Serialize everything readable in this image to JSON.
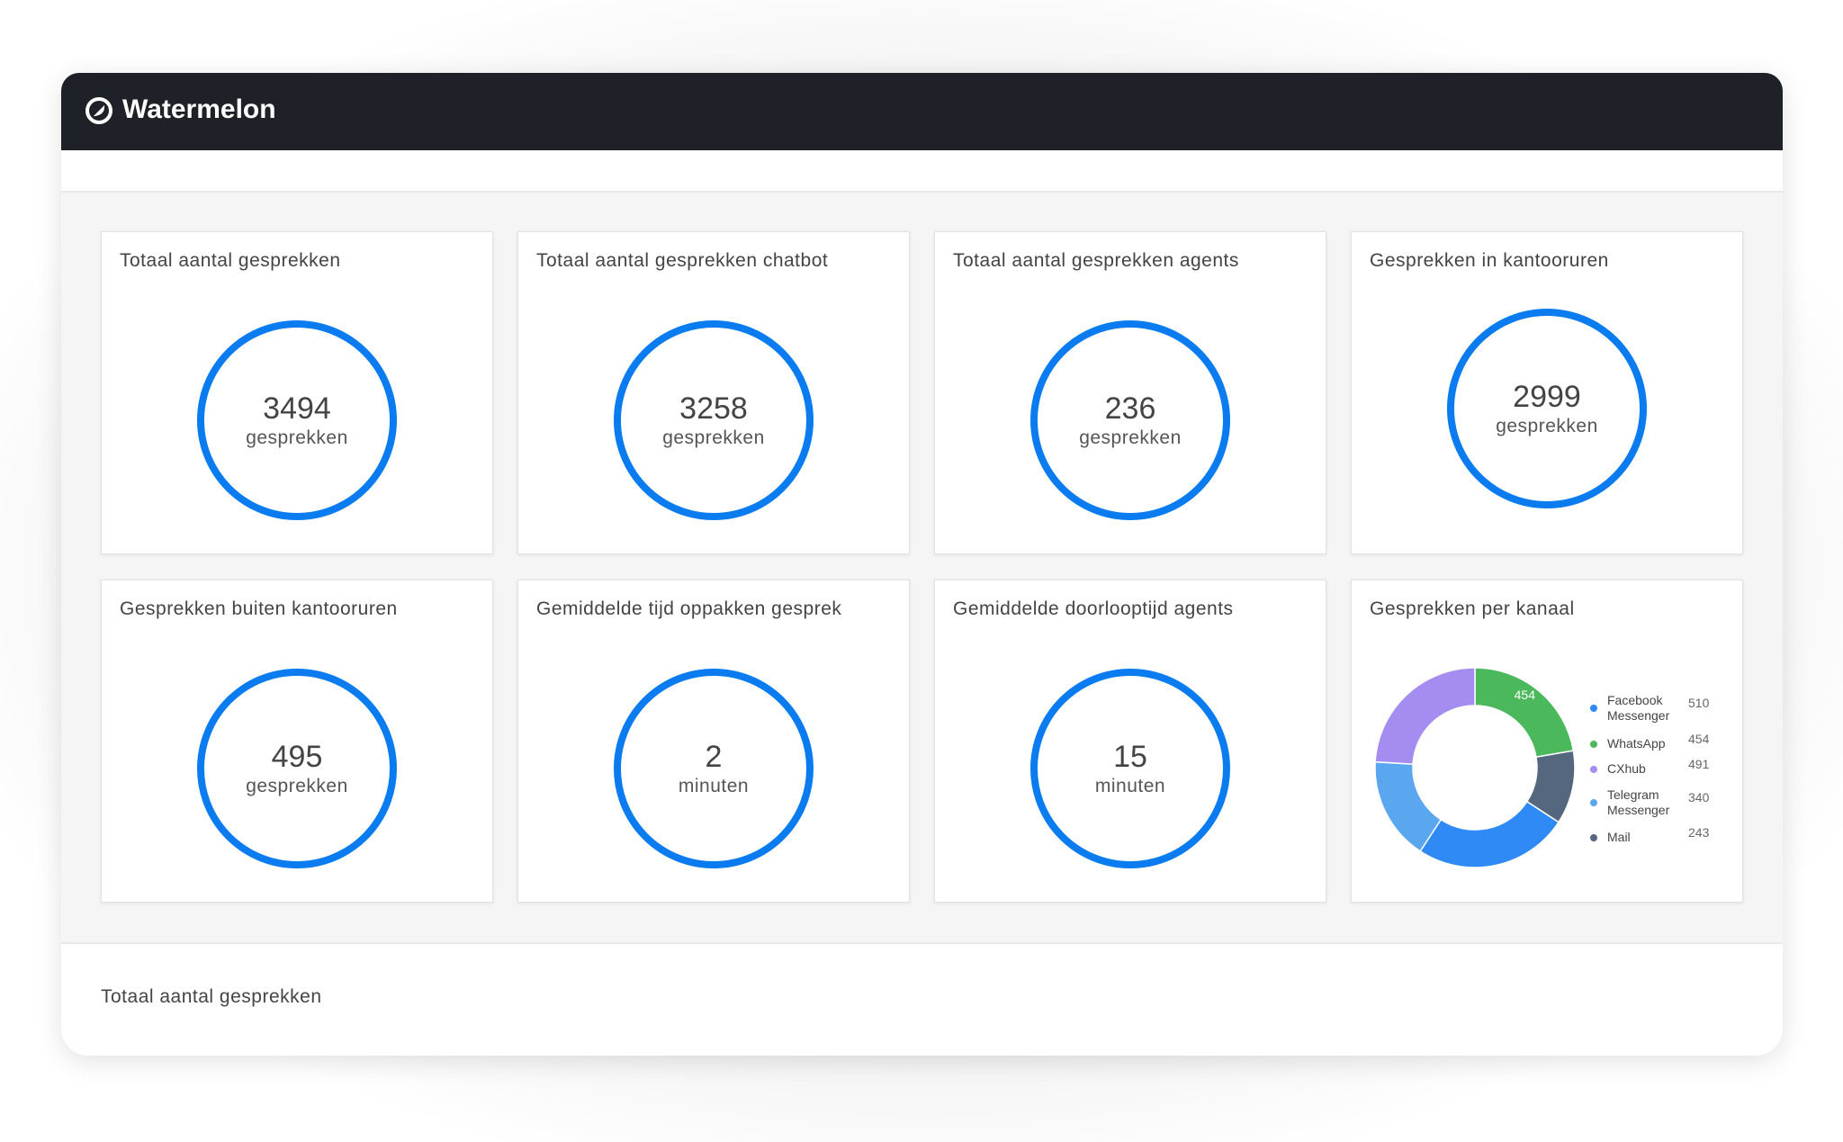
{
  "brand": "Watermelon",
  "cards": [
    {
      "title": "Totaal aantal gesprekken",
      "value": 3494,
      "unit": "gesprekken"
    },
    {
      "title": "Totaal aantal gesprekken chatbot",
      "value": 3258,
      "unit": "gesprekken"
    },
    {
      "title": "Totaal aantal gesprekken agents",
      "value": 236,
      "unit": "gesprekken"
    },
    {
      "title": "Gesprekken in kantooruren",
      "value": 2999,
      "unit": "gesprekken"
    },
    {
      "title": "Gesprekken buiten kantooruren",
      "value": 495,
      "unit": "gesprekken"
    },
    {
      "title": "Gemiddelde tijd oppakken gesprek",
      "value": 2,
      "unit": "minuten"
    },
    {
      "title": "Gemiddelde doorlooptijd agents",
      "value": 15,
      "unit": "minuten"
    }
  ],
  "channel_card": {
    "title": "Gesprekken per kanaal",
    "chart_data": {
      "type": "donut",
      "categories": [
        "Facebook Messenger",
        "WhatsApp",
        "CXhub",
        "Telegram Messenger",
        "Mail"
      ],
      "values": [
        510,
        454,
        491,
        340,
        243
      ],
      "colors": [
        "#2f8af5",
        "#4cb85c",
        "#a48cf0",
        "#5aa7ef",
        "#55667f"
      ]
    }
  },
  "footer": {
    "title": "Totaal aantal gesprekken"
  }
}
